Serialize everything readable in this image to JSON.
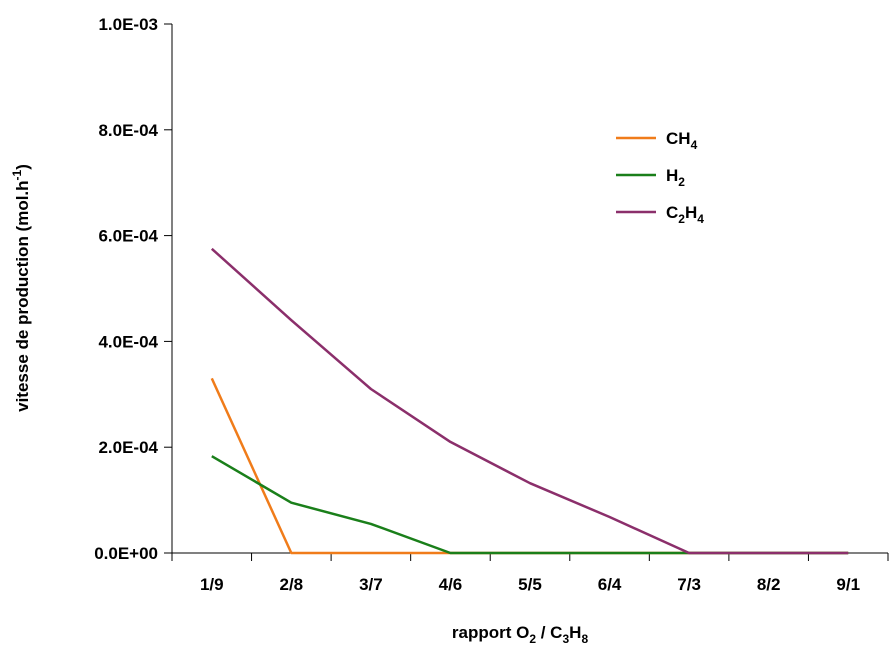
{
  "chart_data": {
    "type": "line",
    "title": "",
    "xlabel": "rapport O2 / C3H8",
    "xlabel_parts": [
      {
        "text": "rapport O"
      },
      {
        "text": "2",
        "sub": true
      },
      {
        "text": " / C"
      },
      {
        "text": "3",
        "sub": true
      },
      {
        "text": "H"
      },
      {
        "text": "8",
        "sub": true
      }
    ],
    "ylabel": "vitesse de production (mol.h-1)",
    "ylabel_parts": [
      {
        "text": "vitesse de production (mol.h"
      },
      {
        "text": "-1",
        "sup": true
      },
      {
        "text": ")"
      }
    ],
    "categories": [
      "1/9",
      "2/8",
      "3/7",
      "4/6",
      "5/5",
      "6/4",
      "7/3",
      "8/2",
      "9/1"
    ],
    "ylim": [
      0,
      0.001
    ],
    "yticks": [
      {
        "value": 0,
        "label": "0.0E+00"
      },
      {
        "value": 0.0002,
        "label": "2.0E-04"
      },
      {
        "value": 0.0004,
        "label": "4.0E-04"
      },
      {
        "value": 0.0006,
        "label": "6.0E-04"
      },
      {
        "value": 0.0008,
        "label": "8.0E-04"
      },
      {
        "value": 0.001,
        "label": "1.0E-03"
      }
    ],
    "grid": false,
    "legend_position": "top-right",
    "series": [
      {
        "name": "CH4",
        "name_parts": [
          {
            "text": "CH"
          },
          {
            "text": "4",
            "sub": true
          }
        ],
        "color": "#f07c1a",
        "values": [
          0.00033,
          0,
          0,
          0,
          0,
          0,
          0,
          0,
          0
        ]
      },
      {
        "name": "H2",
        "name_parts": [
          {
            "text": "H"
          },
          {
            "text": "2",
            "sub": true
          }
        ],
        "color": "#1a7f1a",
        "values": [
          0.000183,
          9.5e-05,
          5.5e-05,
          0,
          0,
          0,
          0,
          0,
          0
        ]
      },
      {
        "name": "C2H4",
        "name_parts": [
          {
            "text": "C"
          },
          {
            "text": "2",
            "sub": true
          },
          {
            "text": "H"
          },
          {
            "text": "4",
            "sub": true
          }
        ],
        "color": "#8b2f6b",
        "values": [
          0.000575,
          0.00044,
          0.00031,
          0.00021,
          0.000132,
          6.8e-05,
          0,
          0,
          0
        ]
      }
    ]
  }
}
